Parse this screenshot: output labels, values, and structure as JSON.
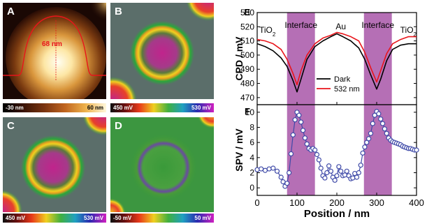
{
  "panels": {
    "A": {
      "label": "A",
      "scale_min": "-30 nm",
      "scale_max": "60 nm",
      "height_annotation": "68 nm"
    },
    "B": {
      "label": "B",
      "scale_min": "450 mV",
      "scale_max": "530 mV"
    },
    "C": {
      "label": "C",
      "scale_min": "450 mV",
      "scale_max": "530 mV"
    },
    "D": {
      "label": "D",
      "scale_min": "-50 mV",
      "scale_max": "50 mV"
    }
  },
  "colors": {
    "dark": "#000000",
    "light": "#e8151b",
    "spv": "#3f4aa8",
    "interface_band": "#9c3f9c"
  },
  "chart_data": [
    {
      "type": "line",
      "panel_label": "E",
      "ylabel": "CPD / mV",
      "xlim": [
        0,
        400
      ],
      "ylim": [
        465,
        530
      ],
      "yticks": [
        470,
        480,
        490,
        500,
        510,
        520,
        530
      ],
      "shaded_regions": [
        [
          75,
          145
        ],
        [
          268,
          338
        ]
      ],
      "annotations": [
        "TiO2",
        "Interface",
        "Au",
        "Interface",
        "TiO2"
      ],
      "legend_position": "bottom-center",
      "x": [
        0,
        20,
        40,
        60,
        75,
        90,
        100,
        110,
        125,
        145,
        165,
        185,
        200,
        215,
        235,
        255,
        270,
        285,
        300,
        310,
        325,
        340,
        360,
        380,
        400
      ],
      "series": [
        {
          "name": "Dark",
          "values": [
            508,
            506,
            503,
            498,
            492,
            482,
            474,
            483,
            497,
            506,
            510,
            513,
            515,
            513,
            510,
            505,
            497,
            486,
            476,
            483,
            496,
            504,
            507,
            508,
            508
          ]
        },
        {
          "name": "532 nm",
          "values": [
            511,
            510,
            508,
            504,
            497,
            487,
            479,
            489,
            500,
            508,
            512,
            514,
            516,
            515,
            513,
            510,
            502,
            491,
            481,
            489,
            501,
            508,
            511,
            513,
            513
          ]
        }
      ]
    },
    {
      "type": "scatter",
      "panel_label": "F",
      "xlabel": "Position / nm",
      "ylabel": "SPV / mV",
      "xlim": [
        0,
        400
      ],
      "ylim": [
        -1,
        11
      ],
      "yticks": [
        0,
        2,
        4,
        6,
        8,
        10
      ],
      "xticks": [
        0,
        100,
        200,
        300,
        400
      ],
      "shaded_regions": [
        [
          75,
          145
        ],
        [
          268,
          338
        ]
      ],
      "x": [
        0,
        10,
        20,
        30,
        40,
        50,
        60,
        65,
        70,
        75,
        80,
        85,
        90,
        95,
        100,
        105,
        110,
        115,
        120,
        125,
        130,
        135,
        140,
        145,
        150,
        155,
        160,
        165,
        170,
        175,
        180,
        185,
        190,
        195,
        200,
        205,
        210,
        215,
        220,
        225,
        230,
        235,
        240,
        245,
        250,
        255,
        260,
        265,
        270,
        275,
        280,
        285,
        290,
        295,
        300,
        305,
        310,
        315,
        320,
        325,
        330,
        335,
        340,
        345,
        350,
        355,
        360,
        365,
        370,
        375,
        380,
        385,
        390,
        395,
        400
      ],
      "series": [
        {
          "name": "",
          "values": [
            2.4,
            2.5,
            2.3,
            2.5,
            2.6,
            2.2,
            1.4,
            0.8,
            0.2,
            0.6,
            2.0,
            4.5,
            7.0,
            9.0,
            10.0,
            9.6,
            8.7,
            7.6,
            6.6,
            5.8,
            5.2,
            5.0,
            5.2,
            5.0,
            4.4,
            3.7,
            2.6,
            1.6,
            1.3,
            2.0,
            2.9,
            2.2,
            1.4,
            1.0,
            1.6,
            2.8,
            2.2,
            1.6,
            1.7,
            2.2,
            1.6,
            1.2,
            1.3,
            1.9,
            1.4,
            2.0,
            3.0,
            4.6,
            5.4,
            6.0,
            6.5,
            7.2,
            8.5,
            9.6,
            10.1,
            9.8,
            9.1,
            8.5,
            7.8,
            7.2,
            6.6,
            6.3,
            6.1,
            6.0,
            5.9,
            5.8,
            5.7,
            5.5,
            5.4,
            5.3,
            5.2,
            5.2,
            5.1,
            5.0,
            5.0
          ]
        }
      ]
    }
  ]
}
